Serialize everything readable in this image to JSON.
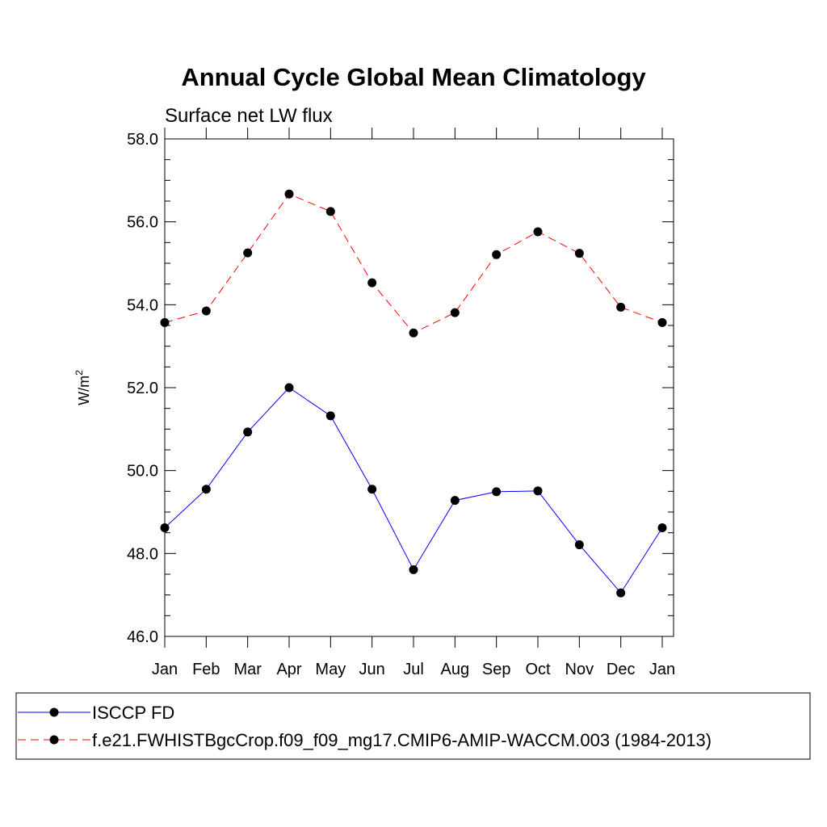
{
  "chart_data": {
    "type": "line",
    "title": "Annual Cycle Global Mean Climatology",
    "subtitle": "Surface net LW flux",
    "ylabel_base": "W/m",
    "ylabel_sup": "2",
    "xlabel": "",
    "categories": [
      "Jan",
      "Feb",
      "Mar",
      "Apr",
      "May",
      "Jun",
      "Jul",
      "Aug",
      "Sep",
      "Oct",
      "Nov",
      "Dec",
      "Jan"
    ],
    "ylim": [
      46.0,
      58.0
    ],
    "yticks": [
      "46.0",
      "48.0",
      "50.0",
      "52.0",
      "54.0",
      "56.0",
      "58.0"
    ],
    "grid": false,
    "legend_position": "bottom",
    "series": [
      {
        "name": "ISCCP FD",
        "color": "#0000ff",
        "dash": "solid",
        "marker": "filled-circle",
        "values": [
          48.62,
          49.55,
          50.93,
          52.0,
          51.32,
          49.55,
          47.61,
          49.28,
          49.49,
          49.51,
          48.21,
          47.05,
          48.62
        ]
      },
      {
        "name": "f.e21.FWHISTBgcCrop.f09_f09_mg17.CMIP6-AMIP-WACCM.003 (1984-2013)",
        "color": "#ff0000",
        "dash": "dashed",
        "marker": "filled-circle",
        "values": [
          53.57,
          53.85,
          55.25,
          56.67,
          56.25,
          54.53,
          53.32,
          53.81,
          55.21,
          55.76,
          55.24,
          53.94,
          53.57
        ]
      }
    ]
  }
}
